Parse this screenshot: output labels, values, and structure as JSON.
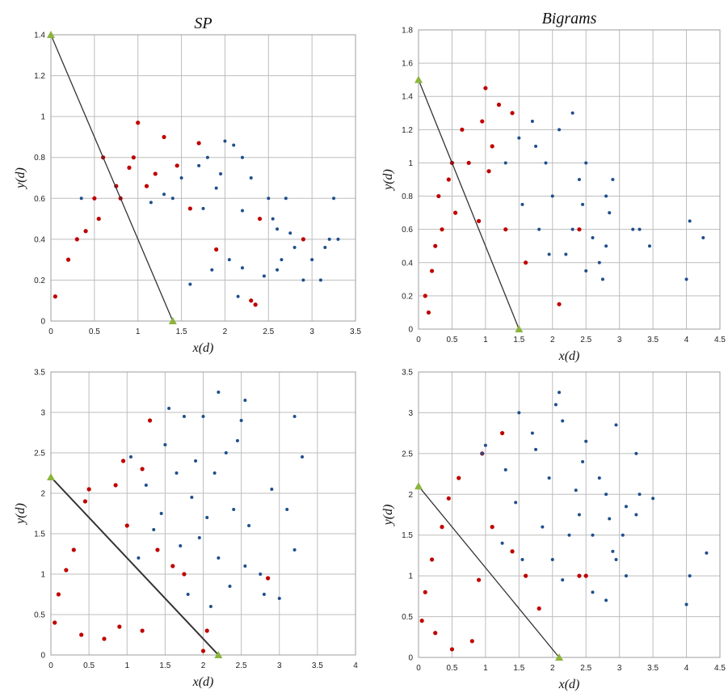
{
  "colors": {
    "series_a": "#c00000",
    "series_b": "#1f4e8c",
    "boundary_line": "#333333",
    "endpoint_marker": "#8db43d",
    "gridline": "#bdbdbd"
  },
  "chart_data": [
    {
      "type": "scatter",
      "title": "SP",
      "xlabel": "x(d)",
      "ylabel": "y(d)",
      "xlim": [
        0,
        3.5
      ],
      "ylim": [
        0,
        1.4
      ],
      "xticks": [
        "0",
        "0.5",
        "1",
        "1.5",
        "2",
        "2.5",
        "3",
        "3.5"
      ],
      "yticks": [
        "0",
        "0.2",
        "0.4",
        "0.6",
        "0.8",
        "1",
        "1.2",
        "1.4"
      ],
      "grid": true,
      "line": {
        "x": [
          0,
          1.4
        ],
        "y": [
          1.4,
          0
        ]
      },
      "series": [
        {
          "color": "series_a",
          "points": [
            [
              0.6,
              0.8
            ],
            [
              0.75,
              0.66
            ],
            [
              1,
              0.97
            ],
            [
              1.3,
              0.9
            ],
            [
              0.95,
              0.8
            ],
            [
              0.9,
              0.75
            ],
            [
              1.2,
              0.72
            ],
            [
              1.45,
              0.76
            ],
            [
              0.5,
              0.6
            ],
            [
              0.8,
              0.6
            ],
            [
              1.1,
              0.66
            ],
            [
              2.4,
              0.5
            ],
            [
              2.9,
              0.4
            ],
            [
              2.3,
              0.1
            ],
            [
              2.35,
              0.08
            ],
            [
              1.9,
              0.35
            ],
            [
              1.7,
              0.87
            ],
            [
              0.4,
              0.44
            ],
            [
              0.3,
              0.4
            ],
            [
              1.6,
              0.55
            ],
            [
              0.2,
              0.3
            ],
            [
              0.05,
              0.12
            ],
            [
              0.55,
              0.5
            ]
          ]
        },
        {
          "color": "series_b",
          "points": [
            [
              2,
              0.88
            ],
            [
              2.1,
              0.86
            ],
            [
              1.8,
              0.8
            ],
            [
              2.2,
              0.8
            ],
            [
              1.5,
              0.7
            ],
            [
              1.95,
              0.72
            ],
            [
              2.3,
              0.7
            ],
            [
              2.5,
              0.6
            ],
            [
              2.7,
              0.6
            ],
            [
              2.55,
              0.5
            ],
            [
              2.2,
              0.54
            ],
            [
              2.6,
              0.45
            ],
            [
              2.8,
              0.36
            ],
            [
              3.0,
              0.3
            ],
            [
              3.2,
              0.4
            ],
            [
              3.3,
              0.4
            ],
            [
              3.25,
              0.6
            ],
            [
              3.15,
              0.36
            ],
            [
              3.1,
              0.2
            ],
            [
              2.9,
              0.2
            ],
            [
              2.6,
              0.25
            ],
            [
              1.7,
              0.76
            ],
            [
              1.4,
              0.6
            ],
            [
              1.3,
              0.62
            ],
            [
              1.15,
              0.58
            ],
            [
              0.35,
              0.6
            ],
            [
              2.45,
              0.22
            ],
            [
              1.85,
              0.25
            ],
            [
              2.05,
              0.3
            ],
            [
              2.2,
              0.26
            ],
            [
              2.15,
              0.12
            ],
            [
              1.6,
              0.18
            ],
            [
              2.75,
              0.43
            ],
            [
              2.65,
              0.3
            ],
            [
              1.9,
              0.65
            ],
            [
              1.75,
              0.55
            ]
          ]
        }
      ]
    },
    {
      "type": "scatter",
      "title": "Bigrams",
      "xlabel": "x(d)",
      "ylabel": "y(d)",
      "xlim": [
        0,
        4.5
      ],
      "ylim": [
        0,
        1.8
      ],
      "xticks": [
        "0",
        "0.5",
        "1",
        "1.5",
        "2",
        "2.5",
        "3",
        "3.5",
        "4",
        "4.5"
      ],
      "yticks": [
        "0",
        "0.2",
        "0.4",
        "0.6",
        "0.8",
        "1",
        "1.2",
        "1.4",
        "1.6",
        "1.8"
      ],
      "grid": true,
      "line": {
        "x": [
          0,
          1.5
        ],
        "y": [
          1.5,
          0
        ]
      },
      "series": [
        {
          "color": "series_a",
          "points": [
            [
              1.0,
              1.45
            ],
            [
              1.2,
              1.35
            ],
            [
              1.4,
              1.3
            ],
            [
              0.95,
              1.25
            ],
            [
              0.65,
              1.2
            ],
            [
              0.75,
              1.0
            ],
            [
              0.45,
              0.9
            ],
            [
              0.5,
              1.0
            ],
            [
              1.1,
              1.1
            ],
            [
              0.3,
              0.8
            ],
            [
              0.35,
              0.6
            ],
            [
              1.05,
              0.95
            ],
            [
              2.1,
              0.15
            ],
            [
              1.3,
              0.6
            ],
            [
              1.6,
              0.4
            ],
            [
              0.25,
              0.5
            ],
            [
              0.2,
              0.35
            ],
            [
              0.1,
              0.2
            ],
            [
              2.4,
              0.6
            ],
            [
              0.55,
              0.7
            ],
            [
              0.9,
              0.65
            ],
            [
              0.15,
              0.1
            ]
          ]
        },
        {
          "color": "series_b",
          "points": [
            [
              2.3,
              1.3
            ],
            [
              1.7,
              1.25
            ],
            [
              2.1,
              1.2
            ],
            [
              2.5,
              1.0
            ],
            [
              2.9,
              0.9
            ],
            [
              2.8,
              0.8
            ],
            [
              2.85,
              0.7
            ],
            [
              3.2,
              0.6
            ],
            [
              3.3,
              0.6
            ],
            [
              3.45,
              0.5
            ],
            [
              4.0,
              0.3
            ],
            [
              4.05,
              0.65
            ],
            [
              4.25,
              0.55
            ],
            [
              2.8,
              0.5
            ],
            [
              2.7,
              0.4
            ],
            [
              2.75,
              0.3
            ],
            [
              1.75,
              1.1
            ],
            [
              2.4,
              0.9
            ],
            [
              2.6,
              0.55
            ],
            [
              2.2,
              0.45
            ],
            [
              2.5,
              0.35
            ],
            [
              1.9,
              1.0
            ],
            [
              2.0,
              0.8
            ],
            [
              1.55,
              0.75
            ],
            [
              1.3,
              1.0
            ],
            [
              1.5,
              1.15
            ],
            [
              1.8,
              0.6
            ],
            [
              2.45,
              0.75
            ],
            [
              1.95,
              0.45
            ],
            [
              2.3,
              0.6
            ]
          ]
        }
      ]
    },
    {
      "type": "scatter",
      "title": "",
      "xlabel": "x(d)",
      "ylabel": "y(d)",
      "xlim": [
        0,
        4
      ],
      "ylim": [
        0,
        3.5
      ],
      "xticks": [
        "0",
        "0.5",
        "1",
        "1.5",
        "2",
        "2.5",
        "3",
        "3.5",
        "4"
      ],
      "yticks": [
        "0",
        "0.5",
        "1",
        "1.5",
        "2",
        "2.5",
        "3",
        "3.5"
      ],
      "grid": true,
      "line": {
        "x": [
          0,
          2.2
        ],
        "y": [
          2.2,
          0
        ]
      },
      "series": [
        {
          "color": "series_a",
          "points": [
            [
              1.3,
              2.9
            ],
            [
              0.95,
              2.4
            ],
            [
              1.2,
              2.3
            ],
            [
              0.85,
              2.1
            ],
            [
              0.45,
              1.9
            ],
            [
              0.5,
              2.05
            ],
            [
              0.3,
              1.3
            ],
            [
              0.2,
              1.05
            ],
            [
              0.1,
              0.75
            ],
            [
              0.05,
              0.4
            ],
            [
              1.4,
              1.3
            ],
            [
              1.6,
              1.1
            ],
            [
              1.75,
              1.0
            ],
            [
              2.05,
              0.3
            ],
            [
              2.0,
              0.05
            ],
            [
              1.2,
              0.3
            ],
            [
              2.85,
              0.95
            ],
            [
              0.4,
              0.25
            ],
            [
              0.7,
              0.2
            ],
            [
              0.9,
              0.35
            ],
            [
              1.0,
              1.6
            ]
          ]
        },
        {
          "color": "series_b",
          "points": [
            [
              1.55,
              3.05
            ],
            [
              2.2,
              3.25
            ],
            [
              2.55,
              3.15
            ],
            [
              3.2,
              2.95
            ],
            [
              3.3,
              2.45
            ],
            [
              2.5,
              2.9
            ],
            [
              2.0,
              2.95
            ],
            [
              1.75,
              2.95
            ],
            [
              1.05,
              2.45
            ],
            [
              2.45,
              2.65
            ],
            [
              2.9,
              2.05
            ],
            [
              3.1,
              1.8
            ],
            [
              3.2,
              1.3
            ],
            [
              2.75,
              1.0
            ],
            [
              2.8,
              0.75
            ],
            [
              3.0,
              0.7
            ],
            [
              2.55,
              1.1
            ],
            [
              2.2,
              1.2
            ],
            [
              2.35,
              0.85
            ],
            [
              2.1,
              0.6
            ],
            [
              1.8,
              0.75
            ],
            [
              1.95,
              1.45
            ],
            [
              2.4,
              1.8
            ],
            [
              1.65,
              2.25
            ],
            [
              1.45,
              1.75
            ],
            [
              1.25,
              2.1
            ],
            [
              2.15,
              2.25
            ],
            [
              2.6,
              1.6
            ],
            [
              1.85,
              1.95
            ],
            [
              2.05,
              1.7
            ],
            [
              1.7,
              1.35
            ],
            [
              1.5,
              2.6
            ],
            [
              2.3,
              2.5
            ],
            [
              1.9,
              2.4
            ],
            [
              1.35,
              1.55
            ],
            [
              1.15,
              1.2
            ]
          ]
        }
      ]
    },
    {
      "type": "scatter",
      "title": "",
      "xlabel": "x(d)",
      "ylabel": "y(d)",
      "xlim": [
        0,
        4.5
      ],
      "ylim": [
        0,
        3.5
      ],
      "xticks": [
        "0",
        "0.5",
        "1",
        "1.5",
        "2",
        "2.5",
        "3",
        "3.5",
        "4",
        "4.5"
      ],
      "yticks": [
        "0",
        "0.5",
        "1",
        "1.5",
        "2",
        "2.5",
        "3",
        "3.5"
      ],
      "grid": true,
      "line": {
        "x": [
          0,
          2.1
        ],
        "y": [
          2.1,
          0
        ]
      },
      "series": [
        {
          "color": "series_a",
          "points": [
            [
              1.25,
              2.75
            ],
            [
              0.95,
              2.5
            ],
            [
              0.6,
              2.2
            ],
            [
              0.45,
              1.95
            ],
            [
              0.35,
              1.6
            ],
            [
              0.2,
              1.2
            ],
            [
              0.1,
              0.8
            ],
            [
              0.05,
              0.45
            ],
            [
              2.4,
              1.0
            ],
            [
              2.5,
              1.0
            ],
            [
              1.4,
              1.3
            ],
            [
              1.6,
              1.0
            ],
            [
              1.8,
              0.6
            ],
            [
              0.5,
              0.1
            ],
            [
              0.8,
              0.2
            ],
            [
              1.1,
              1.6
            ],
            [
              0.25,
              0.3
            ],
            [
              0.9,
              0.95
            ]
          ]
        },
        {
          "color": "series_b",
          "points": [
            [
              2.1,
              3.25
            ],
            [
              2.05,
              3.1
            ],
            [
              1.5,
              3.0
            ],
            [
              2.95,
              2.85
            ],
            [
              2.15,
              2.9
            ],
            [
              2.5,
              2.65
            ],
            [
              1.7,
              2.75
            ],
            [
              3.25,
              2.5
            ],
            [
              2.45,
              2.4
            ],
            [
              1.75,
              2.55
            ],
            [
              0.95,
              2.5
            ],
            [
              1.0,
              2.6
            ],
            [
              3.3,
              2.0
            ],
            [
              3.5,
              1.95
            ],
            [
              3.25,
              1.75
            ],
            [
              2.8,
              2.0
            ],
            [
              2.85,
              1.7
            ],
            [
              2.6,
              1.5
            ],
            [
              2.9,
              1.3
            ],
            [
              2.95,
              1.2
            ],
            [
              3.1,
              1.0
            ],
            [
              4.05,
              1.0
            ],
            [
              4.3,
              1.28
            ],
            [
              4.0,
              0.65
            ],
            [
              2.8,
              0.7
            ],
            [
              2.6,
              0.8
            ],
            [
              2.0,
              1.2
            ],
            [
              2.25,
              1.5
            ],
            [
              2.4,
              1.75
            ],
            [
              1.95,
              2.2
            ],
            [
              1.45,
              1.9
            ],
            [
              1.25,
              1.4
            ],
            [
              1.55,
              1.2
            ],
            [
              2.15,
              0.95
            ],
            [
              1.85,
              1.6
            ],
            [
              2.7,
              2.2
            ],
            [
              3.05,
              1.5
            ],
            [
              3.1,
              1.85
            ],
            [
              2.35,
              2.05
            ],
            [
              1.3,
              2.3
            ]
          ]
        }
      ]
    }
  ]
}
